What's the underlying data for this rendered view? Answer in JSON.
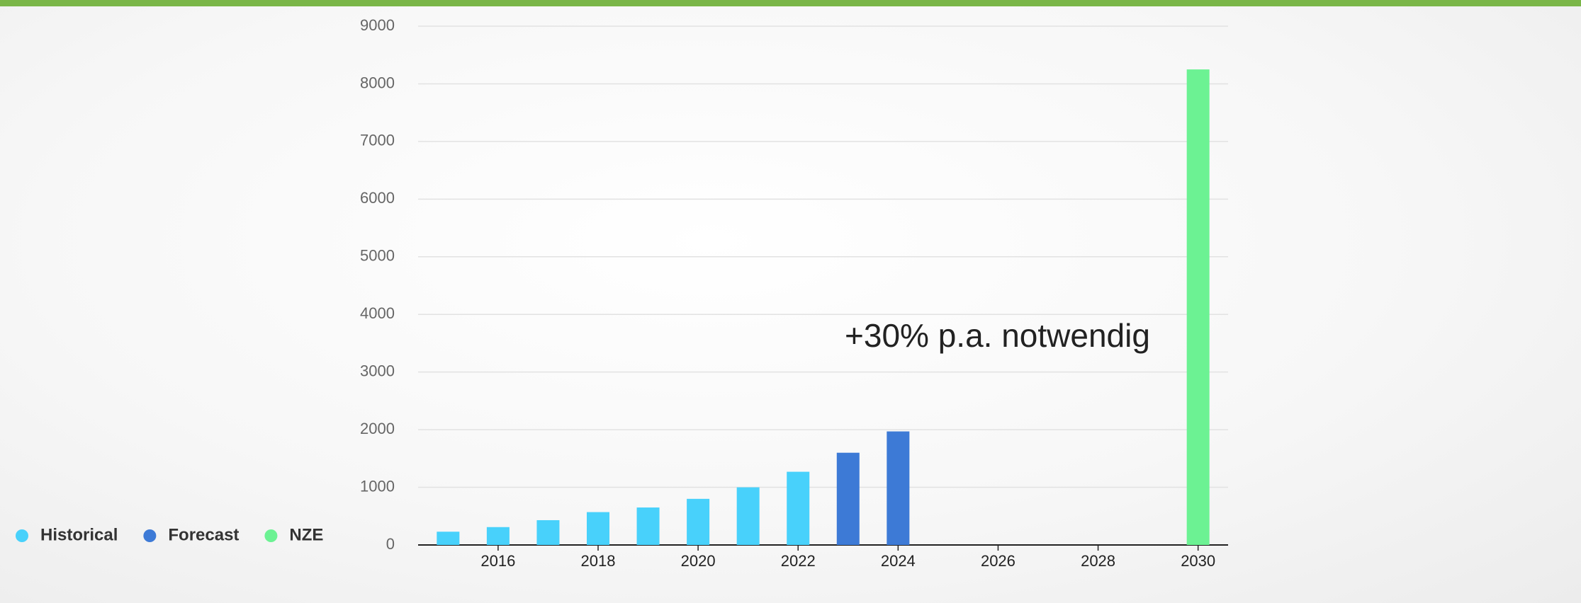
{
  "chart_data": {
    "type": "bar",
    "annotation": "+30% p.a. notwendig",
    "series": [
      {
        "name": "Historical",
        "color": "#48d1fb",
        "x": [
          2015,
          2016,
          2017,
          2018,
          2019,
          2020,
          2021,
          2022
        ],
        "values": [
          230,
          310,
          430,
          570,
          650,
          800,
          1000,
          1270
        ]
      },
      {
        "name": "Forecast",
        "color": "#3d7ad6",
        "x": [
          2023,
          2024
        ],
        "values": [
          1600,
          1970
        ]
      },
      {
        "name": "NZE",
        "color": "#6cf293",
        "x": [
          2030
        ],
        "values": [
          8250
        ]
      }
    ],
    "xlim": [
      2014.4,
      2030.6
    ],
    "xticks": [
      2016,
      2018,
      2020,
      2022,
      2024,
      2026,
      2028,
      2030
    ],
    "ylim": [
      0,
      9000
    ],
    "yticks": [
      0,
      1000,
      2000,
      3000,
      4000,
      5000,
      6000,
      7000,
      8000,
      9000
    ],
    "grid": true,
    "legend": "left"
  }
}
